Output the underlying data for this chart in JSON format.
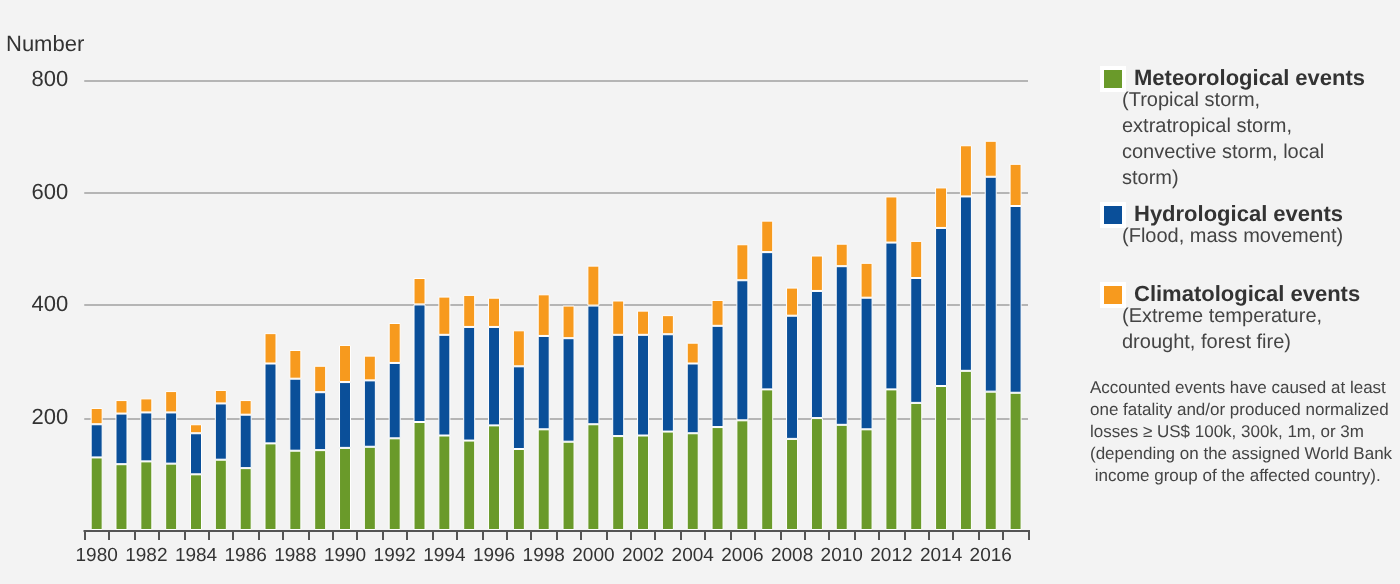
{
  "chart_data": {
    "type": "bar",
    "stacked": true,
    "ylabel": "Number",
    "categories": [
      "1980",
      null,
      "1982",
      null,
      "1984",
      null,
      "1986",
      null,
      "1988",
      null,
      "1990",
      null,
      "1992",
      null,
      "1994",
      null,
      "1996",
      null,
      "1998",
      null,
      "2000",
      null,
      "2002",
      null,
      "2004",
      null,
      "2006",
      null,
      "2008",
      null,
      "2010",
      null,
      "2012",
      null,
      "2014",
      null,
      "2016",
      null
    ],
    "series": [
      {
        "name": "Meteorological events",
        "color": "#6a9a2a",
        "values": [
          129,
          117,
          122,
          118,
          99,
          125,
          110,
          154,
          141,
          142,
          146,
          148,
          163,
          192,
          168,
          159,
          186,
          144,
          179,
          157,
          188,
          167,
          168,
          175,
          172,
          183,
          195,
          250,
          162,
          199,
          187,
          179,
          250,
          226,
          256,
          283,
          246,
          244
        ]
      },
      {
        "name": "Hydrological events",
        "color": "#0a4f99",
        "values": [
          59,
          90,
          87,
          91,
          73,
          100,
          95,
          142,
          128,
          103,
          117,
          118,
          134,
          209,
          179,
          202,
          175,
          147,
          166,
          184,
          211,
          180,
          179,
          173,
          124,
          180,
          249,
          244,
          219,
          226,
          282,
          234,
          261,
          222,
          281,
          310,
          382,
          332
        ]
      },
      {
        "name": "Climatological events",
        "color": "#f79a1e",
        "values": [
          29,
          24,
          25,
          38,
          16,
          24,
          26,
          54,
          51,
          47,
          66,
          44,
          71,
          47,
          68,
          57,
          52,
          64,
          74,
          58,
          71,
          61,
          43,
          34,
          37,
          46,
          64,
          56,
          50,
          63,
          40,
          62,
          82,
          66,
          72,
          91,
          64,
          75
        ]
      }
    ],
    "annotations": [
      "(Tropical storm, extratropical storm, convective storm, local storm)",
      "(Flood, mass movement)",
      "(Extreme temperature, drought, forest fire)",
      "Accounted events have caused at least one fatality and/or produced normalized losses ≥ US$ 100k, 300k, 1m, or 3m (depending on the assigned World Bank income group of the affected country)."
    ],
    "ylim": [
      0,
      800
    ],
    "yticks": [
      200,
      400,
      600,
      800
    ],
    "grid": "y",
    "legend": "right"
  }
}
